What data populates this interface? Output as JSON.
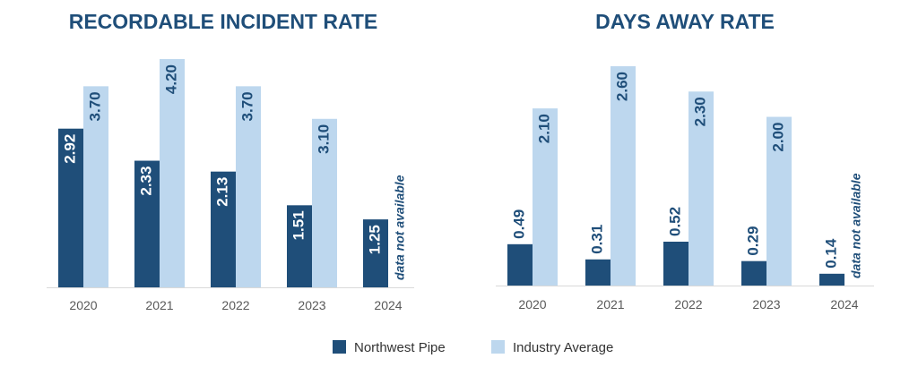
{
  "legend": [
    {
      "name": "Northwest Pipe",
      "color": "#1F4E79"
    },
    {
      "name": "Industry Average",
      "color": "#BDD7EE"
    }
  ],
  "colors": {
    "title": "#1F4E79",
    "axis": "#D9D9D9",
    "tick_text": "#595959",
    "note": "#1F4E79"
  },
  "chart_data": [
    {
      "type": "bar",
      "title": "RECORDABLE INCIDENT RATE",
      "categories": [
        "2020",
        "2021",
        "2022",
        "2023",
        "2024"
      ],
      "series": [
        {
          "name": "Northwest Pipe",
          "values": [
            2.92,
            2.33,
            2.13,
            1.51,
            1.25
          ],
          "color": "#1F4E79"
        },
        {
          "name": "Industry Average",
          "values": [
            3.7,
            4.2,
            3.7,
            3.1,
            null
          ],
          "color": "#BDD7EE"
        }
      ],
      "annotation": "data not available",
      "ylim": [
        0,
        4.2
      ],
      "grid": false
    },
    {
      "type": "bar",
      "title": "DAYS AWAY RATE",
      "categories": [
        "2020",
        "2021",
        "2022",
        "2023",
        "2024"
      ],
      "series": [
        {
          "name": "Northwest Pipe",
          "values": [
            0.49,
            0.31,
            0.52,
            0.29,
            0.14
          ],
          "color": "#1F4E79"
        },
        {
          "name": "Industry Average",
          "values": [
            2.1,
            2.6,
            2.3,
            2.0,
            null
          ],
          "color": "#BDD7EE"
        }
      ],
      "annotation": "data not available",
      "ylim": [
        0,
        2.6
      ],
      "grid": false
    }
  ]
}
